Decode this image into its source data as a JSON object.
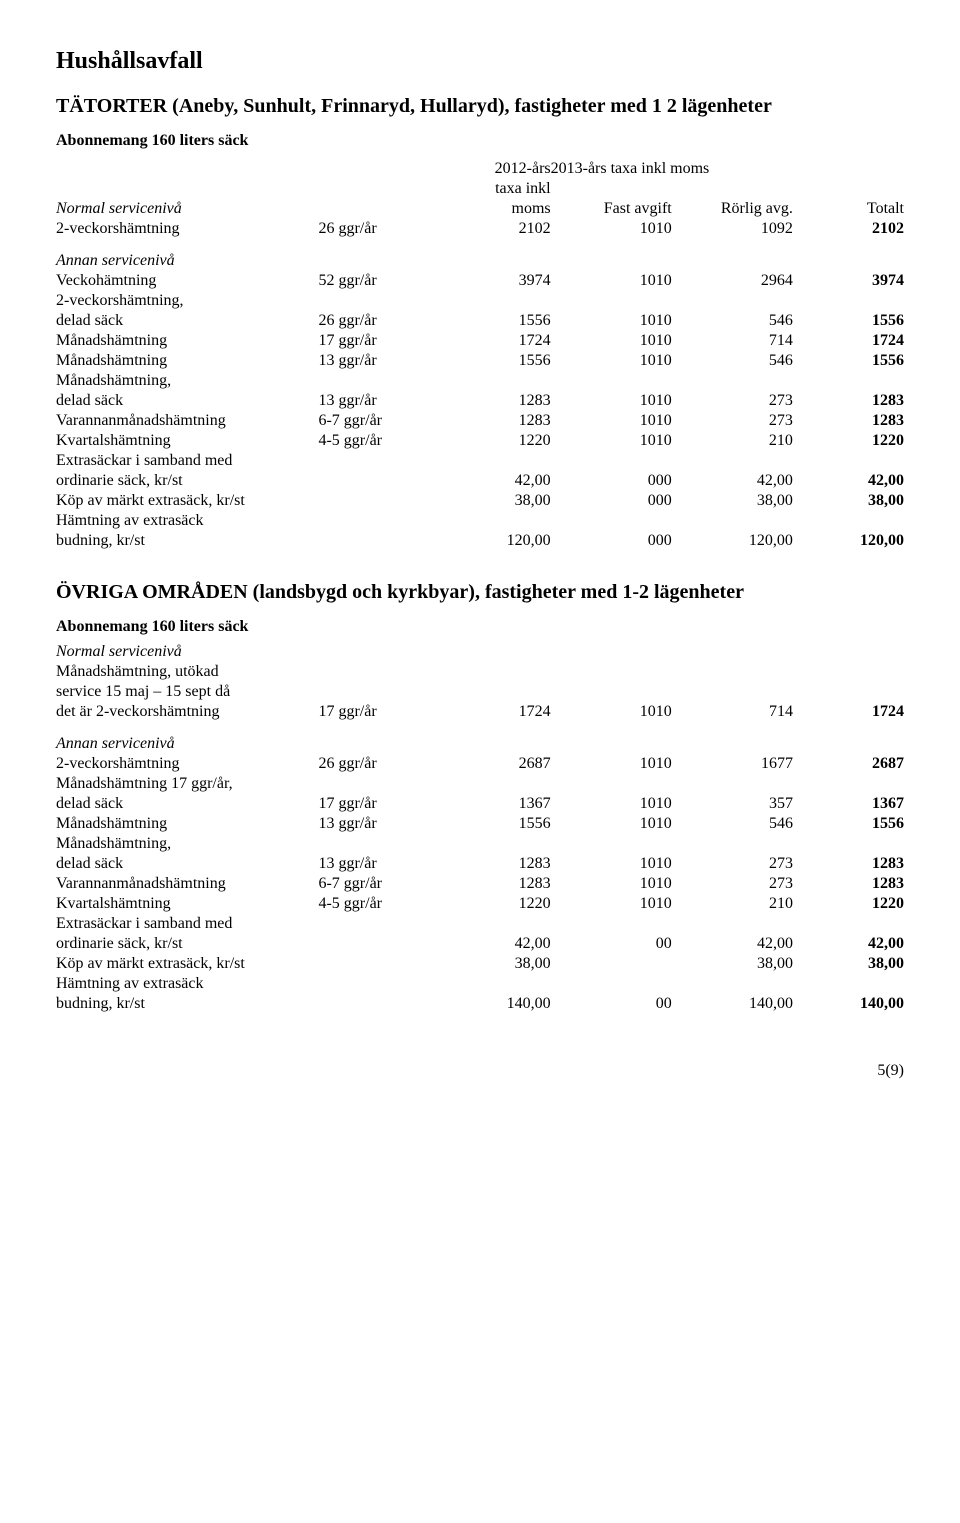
{
  "page_title": "Hushållsavfall",
  "header": {
    "col_2012": "2012-års",
    "col_2012b": "taxa inkl",
    "col_2012c": "moms",
    "col_2013": "2013-års taxa inkl moms",
    "fast": "Fast avgift",
    "rorlig": "Rörlig avg.",
    "totalt": "Totalt"
  },
  "section1": {
    "title": "TÄTORTER  (Aneby, Sunhult, Frinnaryd, Hullaryd), fastigheter med 1 2 lägenheter",
    "abon": "Abonnemang 160 liters säck",
    "normal_label": "Normal servicenivå",
    "annan_label": "Annan servicenivå",
    "rows_normal": [
      {
        "label": "2-veckorshämtning",
        "freq": "26 ggr/år",
        "a": "2102",
        "b": "1010",
        "c": "1092",
        "d": "2102",
        "dbold": true
      }
    ],
    "rows_annan": [
      {
        "label": "Veckohämtning",
        "freq": "52 ggr/år",
        "a": "3974",
        "b": "1010",
        "c": "2964",
        "d": "3974",
        "dbold": true
      },
      {
        "label": "2-veckorshämtning,",
        "freq": "",
        "a": "",
        "b": "",
        "c": "",
        "d": ""
      },
      {
        "label": "delad säck",
        "freq": "26 ggr/år",
        "a": "1556",
        "b": "1010",
        "c": "546",
        "d": "1556",
        "dbold": true
      },
      {
        "label": "Månadshämtning",
        "freq": "17 ggr/år",
        "a": "1724",
        "b": "1010",
        "c": "714",
        "d": "1724",
        "dbold": true
      },
      {
        "label": "Månadshämtning",
        "freq": "13 ggr/år",
        "a": "1556",
        "b": "1010",
        "c": "546",
        "d": "1556",
        "dbold": true
      },
      {
        "label": "Månadshämtning,",
        "freq": "",
        "a": "",
        "b": "",
        "c": "",
        "d": ""
      },
      {
        "label": "delad säck",
        "freq": "13 ggr/år",
        "a": "1283",
        "b": "1010",
        "c": "273",
        "d": "1283",
        "dbold": true
      },
      {
        "label": "Varannanmånadshämtning",
        "freq": "6-7 ggr/år",
        "a": "1283",
        "b": "1010",
        "c": "273",
        "d": "1283",
        "dbold": true
      },
      {
        "label": "Kvartalshämtning",
        "freq": "4-5 ggr/år",
        "a": "1220",
        "b": "1010",
        "c": "210",
        "d": "1220",
        "dbold": true
      },
      {
        "label": "Extrasäckar i samband med",
        "freq": "",
        "a": "",
        "b": "",
        "c": "",
        "d": ""
      },
      {
        "label": "ordinarie säck, kr/st",
        "freq": "",
        "a": "42,00",
        "b": "000",
        "c": "42,00",
        "d": "42,00",
        "dbold": true
      },
      {
        "label": "Köp av märkt extrasäck, kr/st",
        "freq": "",
        "a": "38,00",
        "b": "000",
        "c": "38,00",
        "d": "38,00",
        "dbold": true
      },
      {
        "label": "Hämtning av extrasäck",
        "freq": "",
        "a": "",
        "b": "",
        "c": "",
        "d": ""
      },
      {
        "label": "budning, kr/st",
        "freq": "",
        "a": "120,00",
        "b": "000",
        "c": "120,00",
        "d": "120,00",
        "dbold": true
      }
    ]
  },
  "section2": {
    "title": "ÖVRIGA OMRÅDEN (landsbygd och kyrkbyar), fastigheter med 1-2 lägenheter",
    "abon": "Abonnemang 160 liters säck",
    "normal_label": "Normal servicenivå",
    "annan_label": "Annan servicenivå",
    "rows_normal": [
      {
        "label": "Månadshämtning, utökad",
        "freq": "",
        "a": "",
        "b": "",
        "c": "",
        "d": ""
      },
      {
        "label": "service 15 maj – 15 sept då",
        "freq": "",
        "a": "",
        "b": "",
        "c": "",
        "d": ""
      },
      {
        "label": "det är 2-veckorshämtning",
        "freq": "17 ggr/år",
        "a": "1724",
        "b": "1010",
        "c": "714",
        "d": "1724",
        "dbold": true
      }
    ],
    "rows_annan": [
      {
        "label": "2-veckorshämtning",
        "freq": "26 ggr/år",
        "a": "2687",
        "b": "1010",
        "c": "1677",
        "d": "2687",
        "dbold": true
      },
      {
        "label": "Månadshämtning 17 ggr/år,",
        "freq": "",
        "a": "",
        "b": "",
        "c": "",
        "d": ""
      },
      {
        "label": "delad säck",
        "freq": "17 ggr/år",
        "a": "1367",
        "b": "1010",
        "c": "357",
        "d": "1367",
        "dbold": true
      },
      {
        "label": "Månadshämtning",
        "freq": "13 ggr/år",
        "a": "1556",
        "b": "1010",
        "c": "546",
        "d": "1556",
        "dbold": true
      },
      {
        "label": "Månadshämtning,",
        "freq": "",
        "a": "",
        "b": "",
        "c": "",
        "d": ""
      },
      {
        "label": "delad säck",
        "freq": "13 ggr/år",
        "a": "1283",
        "b": "1010",
        "c": "273",
        "d": "1283",
        "dbold": true
      },
      {
        "label": "Varannanmånadshämtning",
        "freq": "6-7 ggr/år",
        "a": "1283",
        "b": "1010",
        "c": "273",
        "d": "1283",
        "dbold": true
      },
      {
        "label": "Kvartalshämtning",
        "freq": "4-5 ggr/år",
        "a": "1220",
        "b": "1010",
        "c": "210",
        "d": "1220",
        "dbold": true
      },
      {
        "label": "Extrasäckar i samband med",
        "freq": "",
        "a": "",
        "b": "",
        "c": "",
        "d": ""
      },
      {
        "label": "ordinarie säck, kr/st",
        "freq": "",
        "a": "42,00",
        "b": "00",
        "c": "42,00",
        "d": "42,00",
        "dbold": true
      },
      {
        "label": "Köp av märkt extrasäck, kr/st",
        "freq": "",
        "a": "38,00",
        "b": "",
        "c": "38,00",
        "d": "38,00",
        "dbold": true
      },
      {
        "label": "Hämtning av extrasäck",
        "freq": "",
        "a": "",
        "b": "",
        "c": "",
        "d": ""
      },
      {
        "label": "budning, kr/st",
        "freq": "",
        "a": "140,00",
        "b": "00",
        "c": "140,00",
        "d": "140,00",
        "dbold": true
      }
    ]
  },
  "page_num": "5(9)"
}
